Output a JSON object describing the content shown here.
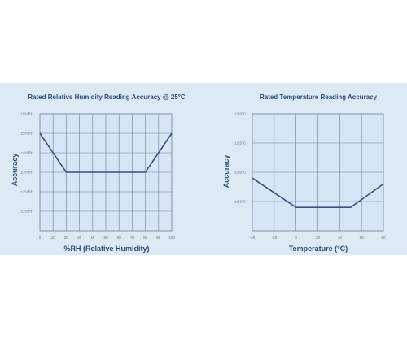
{
  "chart_data": [
    {
      "type": "line",
      "title": "Rated Relative Humidity Reading Accuracy @ 25°C",
      "xlabel": "%RH (Relative Humidity)",
      "ylabel": "Accuracy",
      "xlim": [
        0,
        100
      ],
      "ylim": [
        0,
        6
      ],
      "x_ticks": [
        0,
        10,
        20,
        30,
        40,
        50,
        60,
        70,
        80,
        90,
        100
      ],
      "y_tick_values": [
        1,
        2,
        3,
        4,
        5,
        6
      ],
      "y_tick_labels": [
        "±1%RH",
        "±2%RH",
        "±3%RH",
        "±4%RH",
        "±5%RH",
        "±6%RH"
      ],
      "grid": true,
      "series": [
        {
          "x": [
            0,
            20,
            80,
            100
          ],
          "y": [
            5,
            3,
            3,
            5
          ]
        }
      ],
      "colors": {
        "line": "#3b4f86",
        "plot_bg": "#d6e6f4",
        "grid": "#6f7f99"
      }
    },
    {
      "type": "line",
      "title": "Rated Temperature Reading Accuracy",
      "xlabel": "Temperature (°C)",
      "ylabel": "Accuracy",
      "xlim": [
        -40,
        80
      ],
      "ylim": [
        0,
        2
      ],
      "x_ticks": [
        -40,
        -20,
        0,
        20,
        40,
        60,
        80
      ],
      "y_tick_values": [
        0.5,
        1.0,
        1.5,
        2.0
      ],
      "y_tick_labels": [
        "±0.5°C",
        "±1.0°C",
        "±1.5°C",
        "±2.0°C"
      ],
      "grid": true,
      "series": [
        {
          "x": [
            -40,
            0,
            50,
            80
          ],
          "y": [
            0.9,
            0.4,
            0.4,
            0.8
          ]
        }
      ],
      "colors": {
        "line": "#3b4f86",
        "plot_bg": "#d6e6f4",
        "grid": "#6f7f99"
      }
    }
  ]
}
